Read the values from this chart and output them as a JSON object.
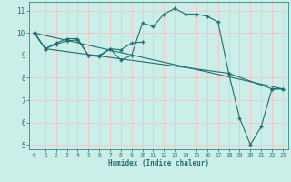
{
  "xlabel": "Humidex (Indice chaleur)",
  "bg_color": "#cceee8",
  "grid_color": "#f0c8c8",
  "line_color": "#1a7070",
  "xlim": [
    -0.5,
    23.5
  ],
  "ylim": [
    4.8,
    11.4
  ],
  "yticks": [
    5,
    6,
    7,
    8,
    9,
    10,
    11
  ],
  "xticks": [
    0,
    1,
    2,
    3,
    4,
    5,
    6,
    7,
    8,
    9,
    10,
    11,
    12,
    13,
    14,
    15,
    16,
    17,
    18,
    19,
    20,
    21,
    22,
    23
  ],
  "series": [
    {
      "x": [
        0,
        1,
        2,
        3,
        4,
        5,
        6,
        7,
        8,
        9,
        10,
        11,
        12,
        13,
        14,
        15,
        16,
        17,
        18,
        22,
        23
      ],
      "y": [
        10.0,
        9.3,
        9.5,
        9.65,
        9.7,
        9.0,
        9.0,
        9.3,
        8.8,
        9.0,
        10.45,
        10.3,
        10.85,
        11.1,
        10.85,
        10.85,
        10.75,
        10.5,
        8.2,
        7.5,
        7.5
      ]
    },
    {
      "x": [
        0,
        1,
        2,
        3,
        4,
        5,
        6,
        7,
        8,
        9,
        10
      ],
      "y": [
        10.0,
        9.3,
        9.55,
        9.75,
        9.75,
        9.0,
        8.95,
        9.3,
        9.25,
        9.55,
        9.6
      ]
    },
    {
      "x": [
        0,
        1,
        18,
        19,
        20,
        21,
        22,
        23
      ],
      "y": [
        10.0,
        9.3,
        8.2,
        6.2,
        5.0,
        5.8,
        7.5,
        7.5
      ]
    },
    {
      "x": [
        0,
        23
      ],
      "y": [
        10.0,
        7.5
      ]
    }
  ]
}
